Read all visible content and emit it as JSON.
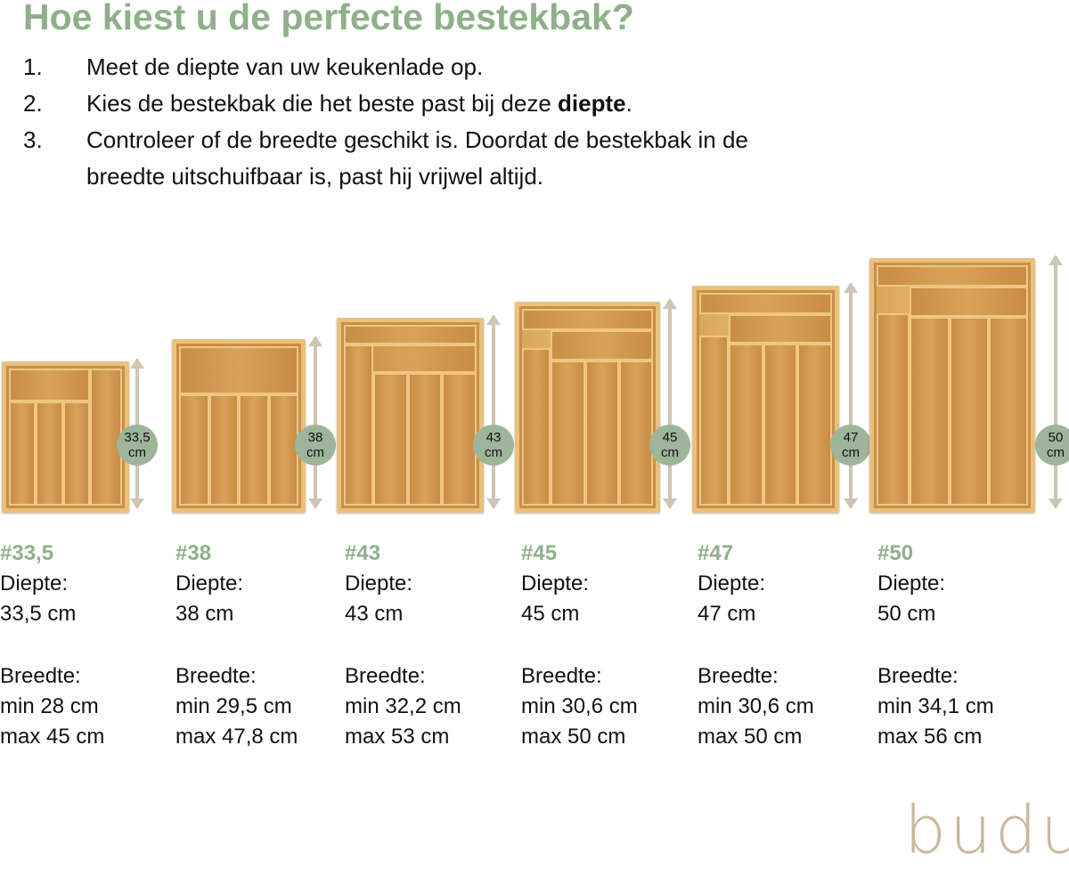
{
  "title": "Hoe kiest u de perfecte bestekbak?",
  "steps": [
    {
      "num": "1.",
      "text": "Meet de diepte van uw keukenlade op."
    },
    {
      "num": "2.",
      "text_before": "Kies de bestekbak die het beste past bij deze ",
      "text_bold": "diepte",
      "text_after": "."
    },
    {
      "num": "3.",
      "text": "Controleer of de breedte geschikt is. Doordat de bestekbak in de",
      "text_line2": "breedte uitschuifbaar is, past hij vrijwel altijd."
    }
  ],
  "products": [
    {
      "code": "#33,5",
      "badge_value": "33,5",
      "badge_unit": "cm",
      "depth_label": "Diepte:",
      "depth": "33,5 cm",
      "width_label": "Breedte:",
      "min": "min 28 cm",
      "max": "max 45 cm"
    },
    {
      "code": "#38",
      "badge_value": "38",
      "badge_unit": "cm",
      "depth_label": "Diepte:",
      "depth": "38 cm",
      "width_label": "Breedte:",
      "min": "min 29,5 cm",
      "max": "max 47,8 cm"
    },
    {
      "code": "#43",
      "badge_value": "43",
      "badge_unit": "cm",
      "depth_label": "Diepte:",
      "depth": "43 cm",
      "width_label": "Breedte:",
      "min": "min 32,2 cm",
      "max": "max 53 cm"
    },
    {
      "code": "#45",
      "badge_value": "45",
      "badge_unit": "cm",
      "depth_label": "Diepte:",
      "depth": "45 cm",
      "width_label": "Breedte:",
      "min": "min 30,6 cm",
      "max": "max 50 cm"
    },
    {
      "code": "#47",
      "badge_value": "47",
      "badge_unit": "cm",
      "depth_label": "Diepte:",
      "depth": "47 cm",
      "width_label": "Breedte:",
      "min": "min 30,6 cm",
      "max": "max 50 cm"
    },
    {
      "code": "#50",
      "badge_value": "50",
      "badge_unit": "cm",
      "depth_label": "Diepte:",
      "depth": "50 cm",
      "width_label": "Breedte:",
      "min": "min 34,1 cm",
      "max": "max 56 cm"
    }
  ],
  "logo": "budu",
  "colors": {
    "accent_green": "#8fb08a",
    "badge": "#9db59a",
    "arrow": "#cfc5b3",
    "logo": "#c9b89c",
    "bamboo": "#d9a55a"
  }
}
